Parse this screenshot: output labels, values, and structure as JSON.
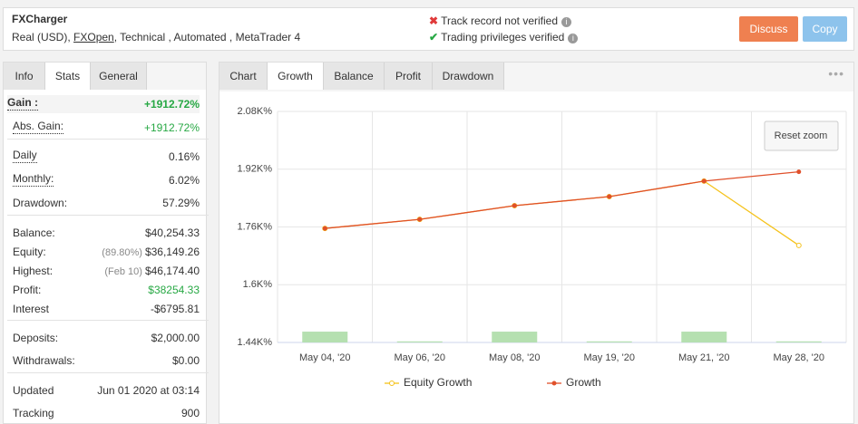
{
  "header": {
    "title": "FXCharger",
    "subtitle": [
      "Real (USD),",
      "FXOpen",
      ", Technical , Automated , MetaTrader 4"
    ],
    "checks": [
      {
        "text": "Track record not verified",
        "ok": false
      },
      {
        "text": "Trading privileges verified",
        "ok": true
      }
    ],
    "buttons": [
      {
        "text": "Discuss",
        "color": "#ef8050"
      },
      {
        "text": "Copy",
        "color": "#8dc3ec"
      }
    ]
  },
  "left_tabs": {
    "tabs": [
      "Info",
      "Stats",
      "General"
    ],
    "active": 1
  },
  "stats": {
    "groups": [
      {
        "rows": [
          {
            "label": "Gain :",
            "value": "+1912.72%",
            "underline": true,
            "color": "#27a844",
            "bold": true
          },
          {
            "label": "Abs. Gain:",
            "value": "+1912.72%",
            "underline": true,
            "color": "#27a844"
          }
        ]
      },
      {
        "rows": [
          {
            "label": "Daily",
            "value": "0.16%",
            "underline": true
          },
          {
            "label": "Monthly:",
            "value": "6.02%",
            "underline": true
          },
          {
            "label": "Drawdown:",
            "value": "57.29%"
          }
        ]
      },
      {
        "rows": [
          {
            "label": "Balance:",
            "value": "$40,254.33"
          },
          {
            "label": "Equity:",
            "note": "(89.80%)",
            "value": "$36,149.26"
          },
          {
            "label": "Highest:",
            "note": "(Feb 10)",
            "value": "$46,174.40"
          },
          {
            "label": "Profit:",
            "value": "$38254.33",
            "color": "#27a844"
          },
          {
            "label": "Interest",
            "value": "-$6795.81"
          }
        ]
      },
      {
        "rows": [
          {
            "label": "Deposits:",
            "value": "$2,000.00"
          },
          {
            "label": "Withdrawals:",
            "value": "$0.00"
          }
        ]
      },
      {
        "rows": [
          {
            "label": "Updated",
            "value": "Jun 01 2020 at 03:14"
          },
          {
            "label": "Tracking",
            "value": "900"
          }
        ]
      }
    ]
  },
  "right_tabs": {
    "tabs": [
      "Chart",
      "Growth",
      "Balance",
      "Profit",
      "Drawdown"
    ],
    "active": 1
  },
  "reset_zoom": "Reset zoom",
  "chart_data": {
    "type": "line",
    "categories": [
      "May 04, '20",
      "May 06, '20",
      "May 08, '20",
      "May 19, '20",
      "May 21, '20",
      "May 28, '20"
    ],
    "series": [
      {
        "name": "Equity Growth",
        "color": "#f5c21b",
        "values": [
          1756,
          1781,
          1819,
          1844,
          1887,
          1709
        ]
      },
      {
        "name": "Growth",
        "color": "#e0502b",
        "values": [
          1756,
          1781,
          1819,
          1844,
          1887,
          1912.72
        ]
      }
    ],
    "bars": {
      "color": "#b5e0b0",
      "values": [
        1470,
        1443,
        1470,
        1443,
        1470,
        1443
      ]
    },
    "ylim": [
      1440,
      2080
    ],
    "yticks": [
      {
        "value": 1440,
        "label": "1.44K%"
      },
      {
        "value": 1600,
        "label": "1.6K%"
      },
      {
        "value": 1760,
        "label": "1.76K%"
      },
      {
        "value": 1920,
        "label": "1.92K%"
      },
      {
        "value": 2080,
        "label": "2.08K%"
      }
    ],
    "grid": true
  }
}
